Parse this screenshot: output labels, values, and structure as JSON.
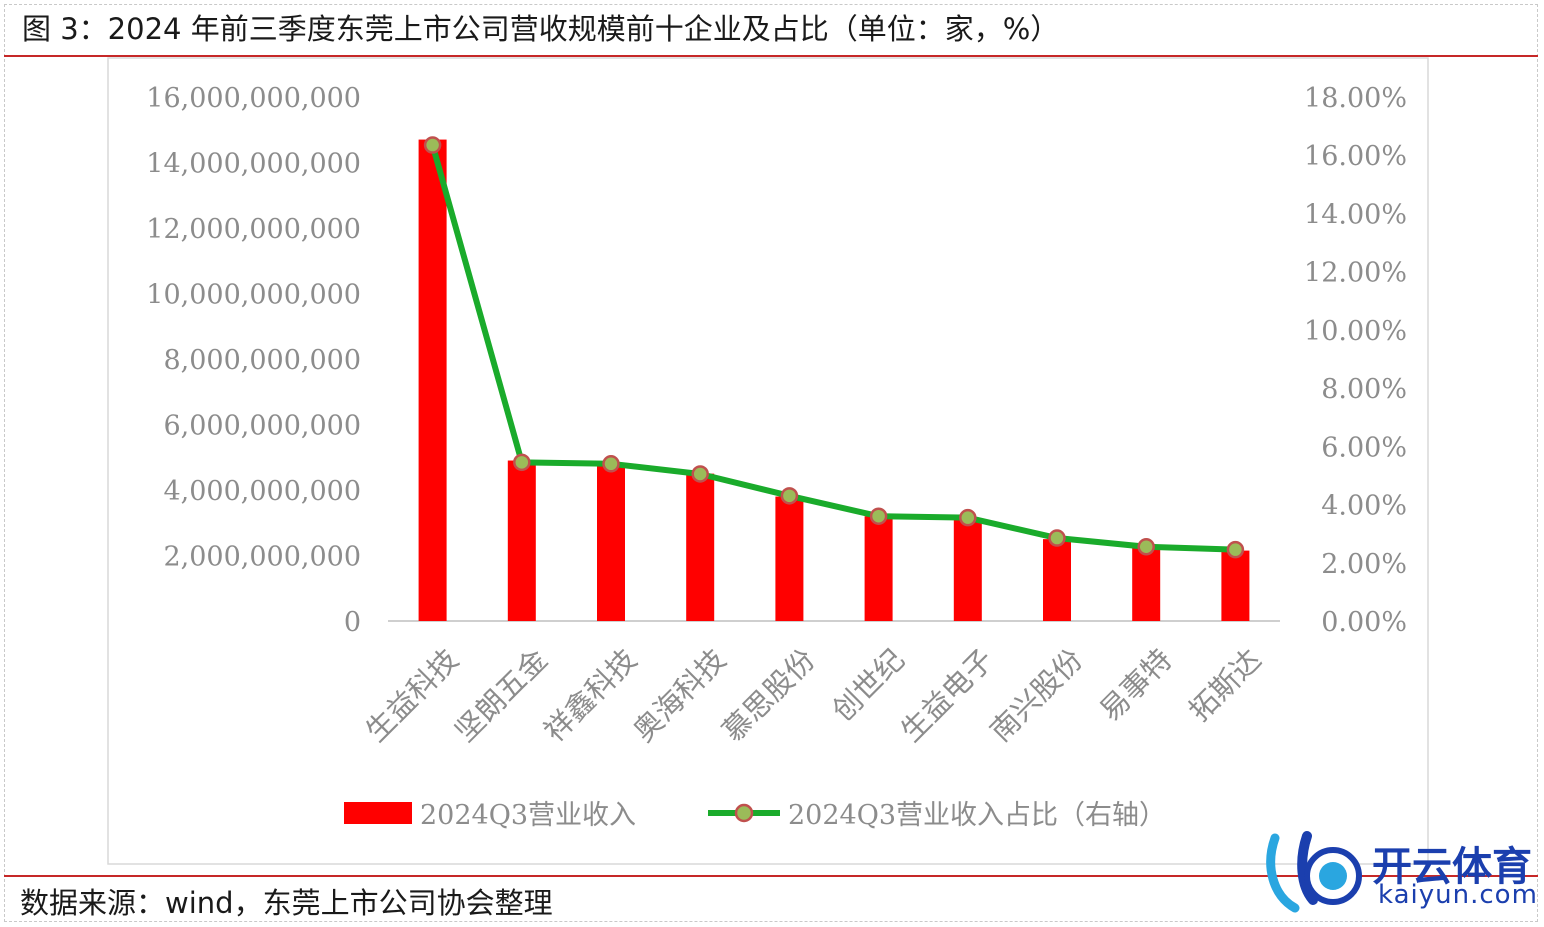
{
  "header": {
    "title": "图 3：2024 年前三季度东莞上市公司营收规模前十企业及占比（单位：家，%）"
  },
  "footer": {
    "source": "数据来源：wind，东莞上市公司协会整理"
  },
  "watermark": {
    "text_cn": "开云体育",
    "text_en": "kaiyun.com"
  },
  "colors": {
    "bar": "#ff0000",
    "line": "#1aab2b",
    "marker_fill": "#9bbb59",
    "marker_stroke": "#c0504d",
    "rule": "#c62828"
  },
  "chart_data": {
    "type": "bar",
    "categories": [
      "生益科技",
      "坚朗五金",
      "祥鑫科技",
      "奥海科技",
      "慕思股份",
      "创世纪",
      "生益电子",
      "南兴股份",
      "易事特",
      "拓斯达"
    ],
    "series": [
      {
        "name": "2024Q3营业收入",
        "type": "bar",
        "axis": "left",
        "values": [
          14700000000,
          4900000000,
          4800000000,
          4500000000,
          3800000000,
          3200000000,
          3100000000,
          2500000000,
          2300000000,
          2150000000
        ]
      },
      {
        "name": "2024Q3营业收入占比（右轴）",
        "type": "line",
        "axis": "right",
        "values": [
          16.35,
          5.45,
          5.4,
          5.05,
          4.3,
          3.6,
          3.55,
          2.85,
          2.55,
          2.45
        ]
      }
    ],
    "y_left": {
      "min": 0,
      "max": 16000000000,
      "step": 2000000000,
      "tick_labels": [
        "0",
        "2,000,000,000",
        "4,000,000,000",
        "6,000,000,000",
        "8,000,000,000",
        "10,000,000,000",
        "12,000,000,000",
        "14,000,000,000",
        "16,000,000,000"
      ]
    },
    "y_right": {
      "min": 0,
      "max": 18,
      "step": 2,
      "tick_labels": [
        "0.00%",
        "2.00%",
        "4.00%",
        "6.00%",
        "8.00%",
        "10.00%",
        "12.00%",
        "14.00%",
        "16.00%",
        "18.00%"
      ]
    },
    "grid": false,
    "legend": "bottom"
  }
}
